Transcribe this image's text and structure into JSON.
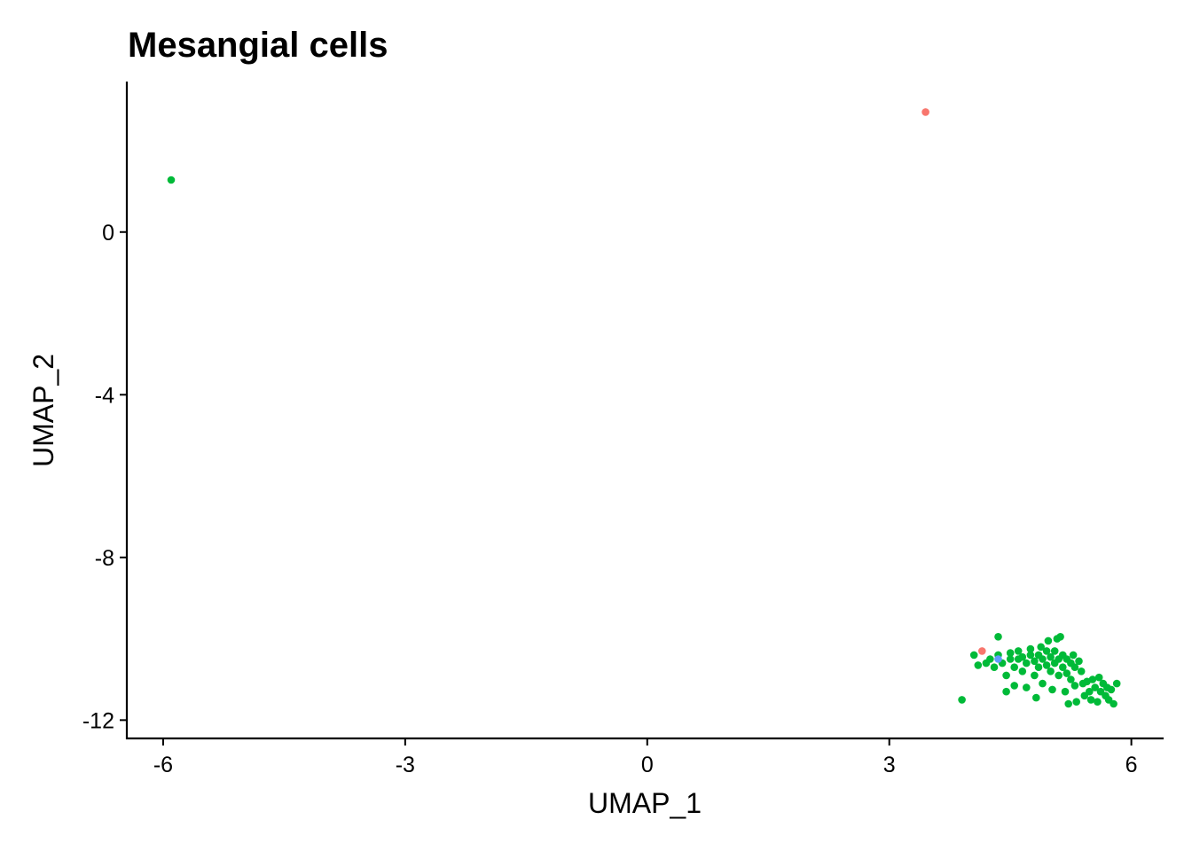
{
  "chart_data": {
    "type": "scatter",
    "title": "Mesangial cells",
    "xlabel": "UMAP_1",
    "ylabel": "UMAP_2",
    "xlim": [
      -6.45,
      6.4
    ],
    "ylim": [
      -12.45,
      3.7
    ],
    "xticks": [
      -6,
      -3,
      0,
      3,
      6
    ],
    "yticks": [
      0,
      -4,
      -8,
      -12
    ],
    "xtick_labels": [
      "-6",
      "-3",
      "0",
      "3",
      "6"
    ],
    "ytick_labels": [
      "0",
      "-4",
      "-8",
      "-12"
    ],
    "grid": false,
    "legend": false,
    "series": [
      {
        "color": "#F8766D",
        "points": [
          [
            3.45,
            2.95
          ],
          [
            4.15,
            -10.3
          ]
        ]
      },
      {
        "color": "#00BA38",
        "points": [
          [
            -5.9,
            1.28
          ],
          [
            3.9,
            -11.5
          ],
          [
            4.05,
            -10.4
          ],
          [
            4.1,
            -10.65
          ],
          [
            4.2,
            -10.6
          ],
          [
            4.25,
            -10.5
          ],
          [
            4.3,
            -10.7
          ],
          [
            4.35,
            -10.4
          ],
          [
            4.35,
            -9.95
          ],
          [
            4.4,
            -10.6
          ],
          [
            4.45,
            -10.9
          ],
          [
            4.45,
            -11.3
          ],
          [
            4.5,
            -10.5
          ],
          [
            4.5,
            -10.35
          ],
          [
            4.55,
            -10.7
          ],
          [
            4.55,
            -11.15
          ],
          [
            4.6,
            -10.5
          ],
          [
            4.6,
            -10.3
          ],
          [
            4.65,
            -10.8
          ],
          [
            4.65,
            -10.45
          ],
          [
            4.7,
            -10.6
          ],
          [
            4.7,
            -11.2
          ],
          [
            4.75,
            -10.4
          ],
          [
            4.75,
            -10.25
          ],
          [
            4.8,
            -10.55
          ],
          [
            4.8,
            -10.9
          ],
          [
            4.82,
            -11.45
          ],
          [
            4.85,
            -10.4
          ],
          [
            4.85,
            -10.7
          ],
          [
            4.88,
            -10.2
          ],
          [
            4.9,
            -10.5
          ],
          [
            4.9,
            -11.1
          ],
          [
            4.95,
            -10.3
          ],
          [
            4.95,
            -10.65
          ],
          [
            4.97,
            -10.05
          ],
          [
            5.0,
            -10.45
          ],
          [
            5.0,
            -10.8
          ],
          [
            5.02,
            -11.25
          ],
          [
            5.05,
            -10.3
          ],
          [
            5.05,
            -10.6
          ],
          [
            5.08,
            -10.0
          ],
          [
            5.1,
            -10.5
          ],
          [
            5.1,
            -10.9
          ],
          [
            5.12,
            -9.95
          ],
          [
            5.15,
            -10.4
          ],
          [
            5.15,
            -10.7
          ],
          [
            5.18,
            -11.3
          ],
          [
            5.2,
            -10.5
          ],
          [
            5.2,
            -10.85
          ],
          [
            5.22,
            -11.6
          ],
          [
            5.25,
            -10.6
          ],
          [
            5.25,
            -11.0
          ],
          [
            5.28,
            -10.4
          ],
          [
            5.3,
            -10.7
          ],
          [
            5.3,
            -11.15
          ],
          [
            5.32,
            -11.55
          ],
          [
            5.35,
            -10.55
          ],
          [
            5.38,
            -10.8
          ],
          [
            5.4,
            -11.1
          ],
          [
            5.42,
            -11.4
          ],
          [
            5.45,
            -11.05
          ],
          [
            5.48,
            -11.3
          ],
          [
            5.5,
            -11.5
          ],
          [
            5.52,
            -11.0
          ],
          [
            5.55,
            -11.2
          ],
          [
            5.58,
            -11.55
          ],
          [
            5.6,
            -10.95
          ],
          [
            5.62,
            -11.3
          ],
          [
            5.65,
            -11.1
          ],
          [
            5.68,
            -11.4
          ],
          [
            5.7,
            -11.2
          ],
          [
            5.72,
            -11.5
          ],
          [
            5.75,
            -11.25
          ],
          [
            5.78,
            -11.6
          ],
          [
            5.82,
            -11.1
          ]
        ]
      },
      {
        "color": "#619CFF",
        "points": [
          [
            4.35,
            -10.5
          ]
        ]
      }
    ]
  }
}
